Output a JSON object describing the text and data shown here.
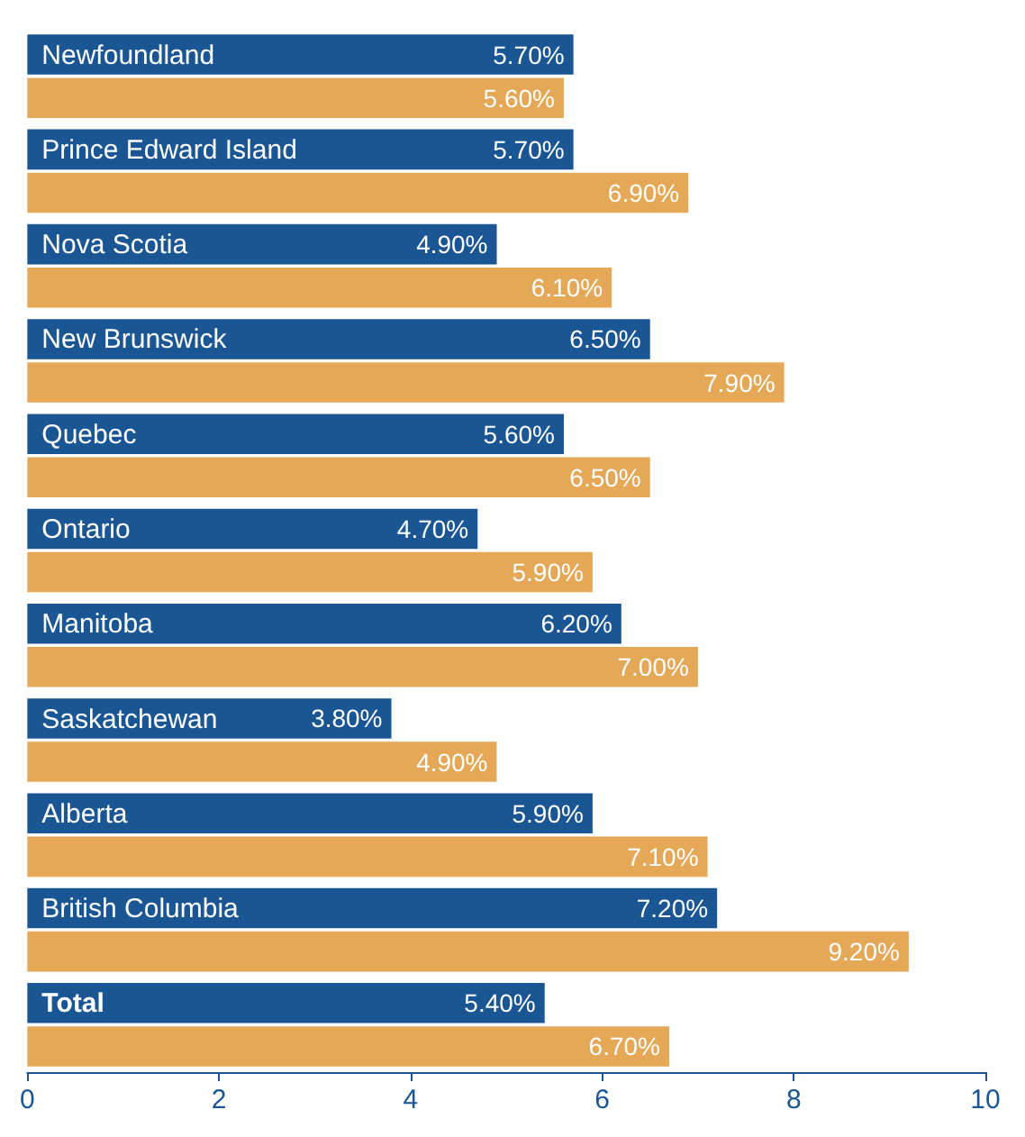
{
  "chart_data": {
    "type": "bar",
    "orientation": "horizontal",
    "categories": [
      "Newfoundland",
      "Prince Edward Island",
      "Nova Scotia",
      "New Brunswick",
      "Quebec",
      "Ontario",
      "Manitoba",
      "Saskatchewan",
      "Alberta",
      "British Columbia",
      "Total"
    ],
    "series": [
      {
        "color": "#1a5594",
        "values": [
          5.7,
          5.7,
          4.9,
          6.5,
          5.6,
          4.7,
          6.2,
          3.8,
          5.9,
          7.2,
          5.4
        ],
        "value_labels": [
          "5.70%",
          "5.70%",
          "4.90%",
          "6.50%",
          "5.60%",
          "4.70%",
          "6.20%",
          "3.80%",
          "5.90%",
          "7.20%",
          "5.40%"
        ]
      },
      {
        "color": "#e5a857",
        "values": [
          5.6,
          6.9,
          6.1,
          7.9,
          6.5,
          5.9,
          7.0,
          4.9,
          7.1,
          9.2,
          6.7
        ],
        "value_labels": [
          "5.60%",
          "6.90%",
          "6.10%",
          "7.90%",
          "6.50%",
          "5.90%",
          "7.00%",
          "4.90%",
          "7.10%",
          "9.20%",
          "6.70%"
        ]
      }
    ],
    "xlim": [
      0,
      10
    ],
    "xticks": [
      0,
      2,
      4,
      6,
      8,
      10
    ],
    "grid": false
  }
}
